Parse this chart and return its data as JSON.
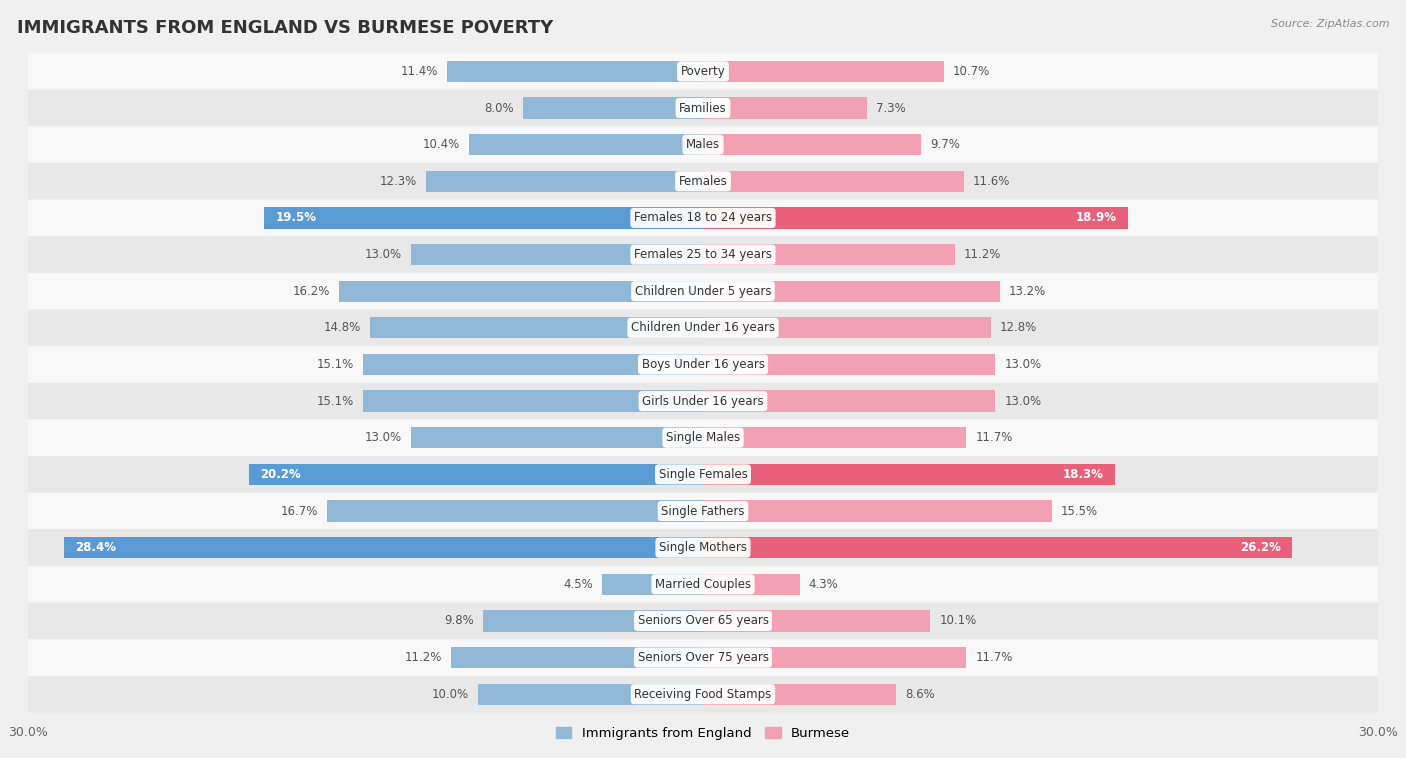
{
  "title": "IMMIGRANTS FROM ENGLAND VS BURMESE POVERTY",
  "source": "Source: ZipAtlas.com",
  "categories": [
    "Poverty",
    "Families",
    "Males",
    "Females",
    "Females 18 to 24 years",
    "Females 25 to 34 years",
    "Children Under 5 years",
    "Children Under 16 years",
    "Boys Under 16 years",
    "Girls Under 16 years",
    "Single Males",
    "Single Females",
    "Single Fathers",
    "Single Mothers",
    "Married Couples",
    "Seniors Over 65 years",
    "Seniors Over 75 years",
    "Receiving Food Stamps"
  ],
  "england_values": [
    11.4,
    8.0,
    10.4,
    12.3,
    19.5,
    13.0,
    16.2,
    14.8,
    15.1,
    15.1,
    13.0,
    20.2,
    16.7,
    28.4,
    4.5,
    9.8,
    11.2,
    10.0
  ],
  "burmese_values": [
    10.7,
    7.3,
    9.7,
    11.6,
    18.9,
    11.2,
    13.2,
    12.8,
    13.0,
    13.0,
    11.7,
    18.3,
    15.5,
    26.2,
    4.3,
    10.1,
    11.7,
    8.6
  ],
  "england_color": "#92b8d8",
  "burmese_color": "#f4a0b4",
  "highlight_england_color": "#5b9bd5",
  "highlight_burmese_color": "#e8607a",
  "highlight_rows": [
    4,
    11,
    13
  ],
  "xlim": 30.0,
  "legend_england": "Immigrants from England",
  "legend_burmese": "Burmese",
  "background_color": "#f0f0f0",
  "row_bg_colors": [
    "#f8f8f8",
    "#e8e8e8"
  ],
  "bar_height": 0.58,
  "title_fontsize": 13,
  "label_fontsize": 8.5,
  "value_fontsize": 8.5,
  "legend_fontsize": 9.5
}
